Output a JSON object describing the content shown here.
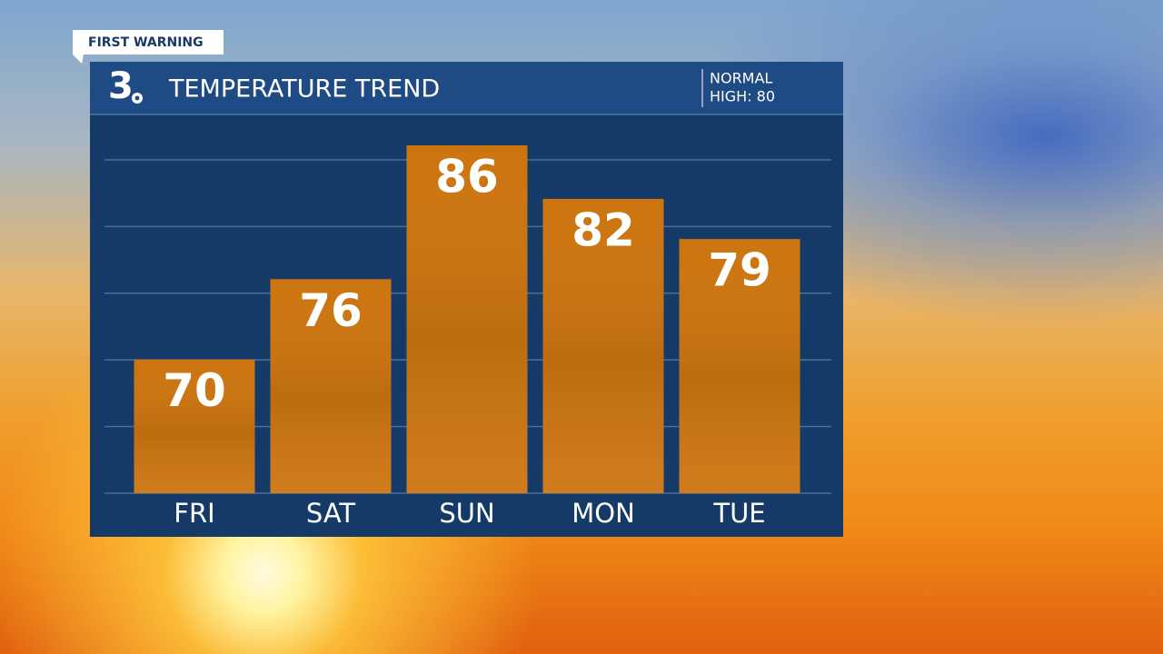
{
  "header": {
    "badge": "FIRST WARNING",
    "logo": "3",
    "normal": [
      "NORMAL",
      "HIGH: 80"
    ]
  },
  "chart_data": {
    "type": "bar",
    "title": "TEMPERATURE TREND",
    "categories": [
      "FRI",
      "SAT",
      "SUN",
      "MON",
      "TUE"
    ],
    "values": [
      70,
      76,
      86,
      82,
      79
    ],
    "color": "#cc7510",
    "ylim": [
      60,
      86
    ],
    "grid": true
  }
}
